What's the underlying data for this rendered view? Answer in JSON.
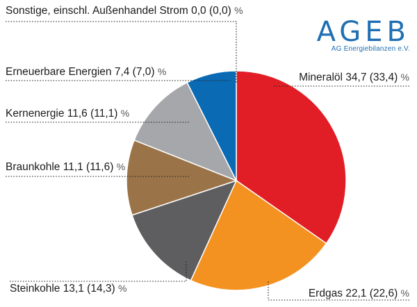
{
  "brand": {
    "name": "AGEB",
    "subtitle": "AG Energiebilanzen e.V."
  },
  "chart_data": {
    "type": "pie",
    "unit": "%",
    "start_direction": "12 o'clock, clockwise",
    "slices": [
      {
        "key": "mineraloel",
        "label": "Mineralöl 34,7 (33,4)",
        "value": 34.7,
        "prev": 33.4,
        "color": "#e11d26"
      },
      {
        "key": "erdgas",
        "label": "Erdgas 22,1 (22,6)",
        "value": 22.1,
        "prev": 22.6,
        "color": "#f39220"
      },
      {
        "key": "steinkohle",
        "label": "Steinkohle 13,1 (14,3)",
        "value": 13.1,
        "prev": 14.3,
        "color": "#5e5e60"
      },
      {
        "key": "braunkohle",
        "label": "Braunkohle 11,1 (11,6)",
        "value": 11.1,
        "prev": 11.6,
        "color": "#9a7448"
      },
      {
        "key": "kernenergie",
        "label": "Kernenergie 11,6 (11,1)",
        "value": 11.6,
        "prev": 11.1,
        "color": "#a6a7aa"
      },
      {
        "key": "erneuerbare",
        "label": "Erneuerbare Energien  7,4 (7,0)",
        "value": 7.4,
        "prev": 7.0,
        "color": "#0b6ab4"
      },
      {
        "key": "sonstige",
        "label": "Sonstige, einschl. Außenhandel Strom 0,0 (0,0)",
        "value": 0.0,
        "prev": 0.0,
        "color": "#ffffff"
      }
    ]
  }
}
